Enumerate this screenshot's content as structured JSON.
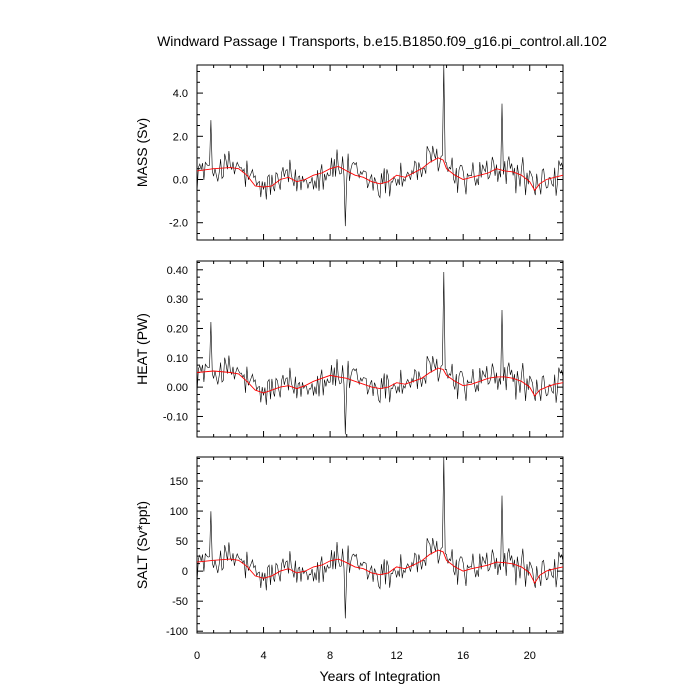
{
  "chart_data": {
    "type": "line",
    "title": "Windward Passage I Transports, b.e15.B1850.f09_g16.pi_control.all.102",
    "xlabel": "Years of Integration",
    "xlim": [
      0,
      22
    ],
    "xticks": [
      0,
      4,
      8,
      12,
      16,
      20
    ],
    "xtick_labels": [
      "0",
      "4",
      "8",
      "12",
      "16",
      "20"
    ],
    "colors": {
      "raw": "#000000",
      "smoothed": "#ff0000"
    },
    "panels": [
      {
        "name": "mass",
        "ylabel": "MASS (Sv)",
        "ylim": [
          -2.8,
          5.3
        ],
        "yticks": [
          -2.0,
          0.0,
          2.0,
          4.0
        ],
        "ytick_labels": [
          "-2.0",
          "0.0",
          "2.0",
          "4.0"
        ],
        "smoothed": {
          "x": [
            0,
            1,
            2,
            2.5,
            3,
            3.5,
            4,
            4.5,
            5,
            5.5,
            6,
            6.5,
            7,
            7.5,
            8,
            8.5,
            9,
            9.5,
            10,
            10.5,
            11,
            11.5,
            12,
            12.5,
            13,
            13.5,
            14,
            14.5,
            14.8,
            15,
            15.5,
            16,
            16.5,
            17,
            17.5,
            18,
            18.5,
            19,
            19.5,
            20,
            20.3,
            20.6,
            21,
            21.5,
            22
          ],
          "y": [
            0.4,
            0.5,
            0.55,
            0.5,
            0.2,
            -0.3,
            -0.35,
            -0.3,
            0.0,
            0.1,
            -0.1,
            0.0,
            0.2,
            0.3,
            0.5,
            0.6,
            0.4,
            0.2,
            0.1,
            -0.1,
            -0.2,
            -0.1,
            0.2,
            0.1,
            0.3,
            0.5,
            0.8,
            1.0,
            0.9,
            0.5,
            0.2,
            0.0,
            0.1,
            0.2,
            0.3,
            0.5,
            0.4,
            0.35,
            0.2,
            -0.1,
            -0.5,
            -0.2,
            0.0,
            0.1,
            0.2
          ]
        }
      },
      {
        "name": "heat",
        "ylabel": "HEAT (PW)",
        "ylim": [
          -0.17,
          0.43
        ],
        "yticks": [
          -0.1,
          0.0,
          0.1,
          0.2,
          0.3,
          0.4
        ],
        "ytick_labels": [
          "-0.10",
          "0.00",
          "0.10",
          "0.20",
          "0.30",
          "0.40"
        ],
        "smoothed": {
          "x": [
            0,
            1,
            2,
            2.5,
            3,
            3.5,
            4,
            4.5,
            5,
            5.5,
            6,
            6.5,
            7,
            7.5,
            8,
            8.5,
            9,
            9.5,
            10,
            10.5,
            11,
            11.5,
            12,
            12.5,
            13,
            13.5,
            14,
            14.5,
            14.8,
            15,
            15.5,
            16,
            16.5,
            17,
            17.5,
            18,
            18.5,
            19,
            19.5,
            20,
            20.3,
            20.6,
            21,
            21.5,
            22
          ],
          "y": [
            0.05,
            0.055,
            0.05,
            0.045,
            0.02,
            -0.01,
            -0.02,
            -0.01,
            0.0,
            0.005,
            -0.005,
            0.005,
            0.02,
            0.03,
            0.04,
            0.035,
            0.03,
            0.02,
            0.01,
            0.0,
            -0.005,
            0.0,
            0.015,
            0.01,
            0.02,
            0.03,
            0.05,
            0.065,
            0.06,
            0.04,
            0.02,
            0.005,
            0.01,
            0.02,
            0.03,
            0.035,
            0.035,
            0.03,
            0.02,
            0.0,
            -0.03,
            -0.01,
            0.0,
            0.01,
            0.015
          ]
        }
      },
      {
        "name": "salt",
        "ylabel": "SALT (Sv*ppt)",
        "ylim": [
          -103,
          190
        ],
        "yticks": [
          -100,
          -50,
          0,
          50,
          100,
          150
        ],
        "ytick_labels": [
          "-100",
          "-50",
          "0",
          "50",
          "100",
          "150"
        ],
        "smoothed": {
          "x": [
            0,
            1,
            2,
            2.5,
            3,
            3.5,
            4,
            4.5,
            5,
            5.5,
            6,
            6.5,
            7,
            7.5,
            8,
            8.5,
            9,
            9.5,
            10,
            10.5,
            11,
            11.5,
            12,
            12.5,
            13,
            13.5,
            14,
            14.5,
            14.8,
            15,
            15.5,
            16,
            16.5,
            17,
            17.5,
            18,
            18.5,
            19,
            19.5,
            20,
            20.3,
            20.6,
            21,
            21.5,
            22
          ],
          "y": [
            15,
            18,
            20,
            18,
            8,
            -8,
            -12,
            -8,
            0,
            4,
            -3,
            0,
            7,
            10,
            17,
            20,
            14,
            7,
            4,
            -3,
            -6,
            -3,
            7,
            4,
            10,
            17,
            28,
            35,
            32,
            18,
            7,
            0,
            4,
            7,
            10,
            15,
            14,
            12,
            7,
            -3,
            -20,
            -7,
            0,
            4,
            7
          ]
        }
      }
    ],
    "raw_series_note_excluded": true
  }
}
